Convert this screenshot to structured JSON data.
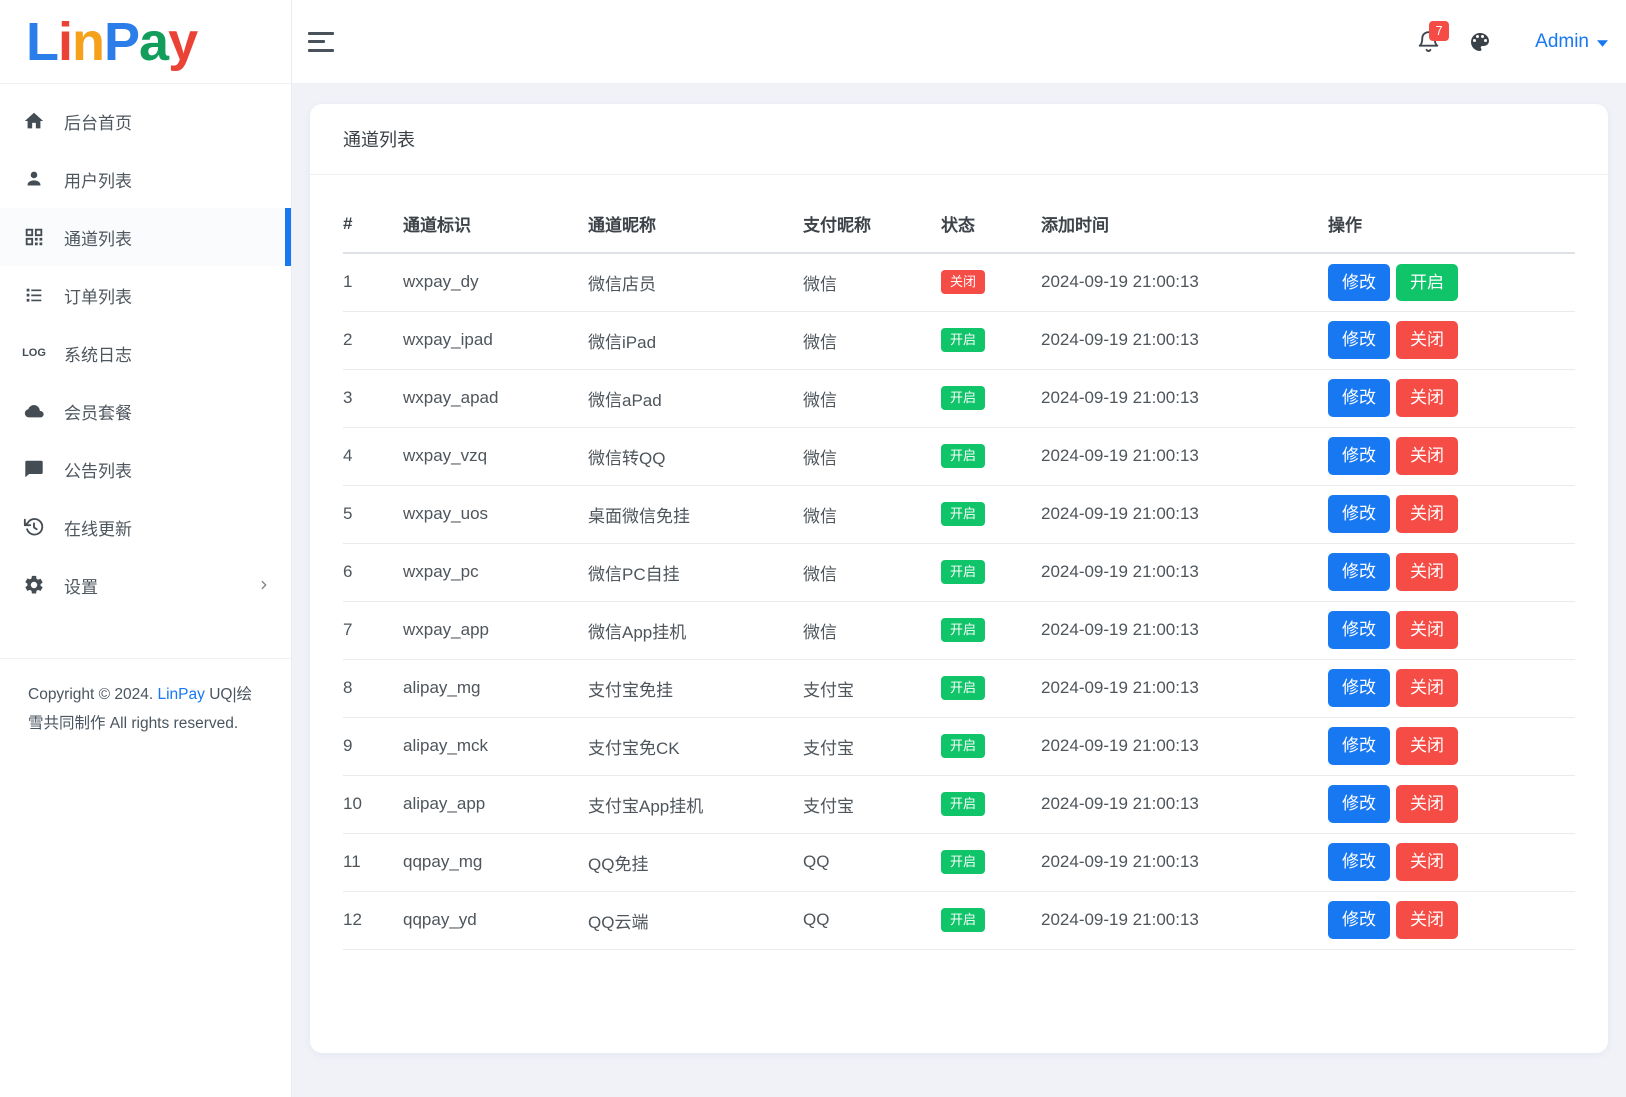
{
  "colors": {
    "primary": "#1778f2",
    "success": "#10c469",
    "danger": "#f64c46"
  },
  "brand": {
    "letters": [
      {
        "char": "L",
        "color": "#2b7de9"
      },
      {
        "char": "i",
        "color": "#ea4335"
      },
      {
        "char": "n",
        "color": "#f6a11c"
      },
      {
        "char": "P",
        "color": "#2b7de9"
      },
      {
        "char": "a",
        "color": "#129d5b"
      },
      {
        "char": "y",
        "color": "#ea4335"
      }
    ]
  },
  "topbar": {
    "notification_count": "7",
    "user_label": "Admin"
  },
  "sidebar": {
    "items": [
      {
        "id": "home",
        "label": "后台首页",
        "icon": "home-icon",
        "active": false,
        "chevron": false
      },
      {
        "id": "users",
        "label": "用户列表",
        "icon": "user-icon",
        "active": false,
        "chevron": false
      },
      {
        "id": "channels",
        "label": "通道列表",
        "icon": "qrcode-icon",
        "active": true,
        "chevron": false
      },
      {
        "id": "orders",
        "label": "订单列表",
        "icon": "list-icon",
        "active": false,
        "chevron": false
      },
      {
        "id": "logs",
        "label": "系统日志",
        "icon": "log-icon",
        "active": false,
        "chevron": false
      },
      {
        "id": "plans",
        "label": "会员套餐",
        "icon": "cloud-icon",
        "active": false,
        "chevron": false
      },
      {
        "id": "notices",
        "label": "公告列表",
        "icon": "message-icon",
        "active": false,
        "chevron": false
      },
      {
        "id": "update",
        "label": "在线更新",
        "icon": "update-icon",
        "active": false,
        "chevron": false
      },
      {
        "id": "settings",
        "label": "设置",
        "icon": "gear-icon",
        "active": false,
        "chevron": true
      }
    ]
  },
  "footer": {
    "copyright_prefix": "Copyright © 2024.",
    "brand": "LinPay",
    "rights": "UQ|绘雪共同制作 All rights reserved."
  },
  "page": {
    "card_title": "通道列表"
  },
  "table": {
    "headers": [
      "#",
      "通道标识",
      "通道昵称",
      "支付昵称",
      "状态",
      "添加时间",
      "操作"
    ],
    "rows": [
      {
        "index": "1",
        "code": "wxpay_dy",
        "nickname": "微信店员",
        "pay": "微信",
        "status": "关闭",
        "status_type": "off",
        "time": "2024-09-19 21:00:13",
        "actions": [
          {
            "label": "修改",
            "type": "primary",
            "name": "edit-button"
          },
          {
            "label": "开启",
            "type": "success",
            "name": "enable-button"
          }
        ]
      },
      {
        "index": "2",
        "code": "wxpay_ipad",
        "nickname": "微信iPad",
        "pay": "微信",
        "status": "开启",
        "status_type": "on",
        "time": "2024-09-19 21:00:13",
        "actions": [
          {
            "label": "修改",
            "type": "primary",
            "name": "edit-button"
          },
          {
            "label": "关闭",
            "type": "danger",
            "name": "close-button"
          }
        ]
      },
      {
        "index": "3",
        "code": "wxpay_apad",
        "nickname": "微信aPad",
        "pay": "微信",
        "status": "开启",
        "status_type": "on",
        "time": "2024-09-19 21:00:13",
        "actions": [
          {
            "label": "修改",
            "type": "primary",
            "name": "edit-button"
          },
          {
            "label": "关闭",
            "type": "danger",
            "name": "close-button"
          }
        ]
      },
      {
        "index": "4",
        "code": "wxpay_vzq",
        "nickname": "微信转QQ",
        "pay": "微信",
        "status": "开启",
        "status_type": "on",
        "time": "2024-09-19 21:00:13",
        "actions": [
          {
            "label": "修改",
            "type": "primary",
            "name": "edit-button"
          },
          {
            "label": "关闭",
            "type": "danger",
            "name": "close-button"
          }
        ]
      },
      {
        "index": "5",
        "code": "wxpay_uos",
        "nickname": "桌面微信免挂",
        "pay": "微信",
        "status": "开启",
        "status_type": "on",
        "time": "2024-09-19 21:00:13",
        "actions": [
          {
            "label": "修改",
            "type": "primary",
            "name": "edit-button"
          },
          {
            "label": "关闭",
            "type": "danger",
            "name": "close-button"
          }
        ]
      },
      {
        "index": "6",
        "code": "wxpay_pc",
        "nickname": "微信PC自挂",
        "pay": "微信",
        "status": "开启",
        "status_type": "on",
        "time": "2024-09-19 21:00:13",
        "actions": [
          {
            "label": "修改",
            "type": "primary",
            "name": "edit-button"
          },
          {
            "label": "关闭",
            "type": "danger",
            "name": "close-button"
          }
        ]
      },
      {
        "index": "7",
        "code": "wxpay_app",
        "nickname": "微信App挂机",
        "pay": "微信",
        "status": "开启",
        "status_type": "on",
        "time": "2024-09-19 21:00:13",
        "actions": [
          {
            "label": "修改",
            "type": "primary",
            "name": "edit-button"
          },
          {
            "label": "关闭",
            "type": "danger",
            "name": "close-button"
          }
        ]
      },
      {
        "index": "8",
        "code": "alipay_mg",
        "nickname": "支付宝免挂",
        "pay": "支付宝",
        "status": "开启",
        "status_type": "on",
        "time": "2024-09-19 21:00:13",
        "actions": [
          {
            "label": "修改",
            "type": "primary",
            "name": "edit-button"
          },
          {
            "label": "关闭",
            "type": "danger",
            "name": "close-button"
          }
        ]
      },
      {
        "index": "9",
        "code": "alipay_mck",
        "nickname": "支付宝免CK",
        "pay": "支付宝",
        "status": "开启",
        "status_type": "on",
        "time": "2024-09-19 21:00:13",
        "actions": [
          {
            "label": "修改",
            "type": "primary",
            "name": "edit-button"
          },
          {
            "label": "关闭",
            "type": "danger",
            "name": "close-button"
          }
        ]
      },
      {
        "index": "10",
        "code": "alipay_app",
        "nickname": "支付宝App挂机",
        "pay": "支付宝",
        "status": "开启",
        "status_type": "on",
        "time": "2024-09-19 21:00:13",
        "actions": [
          {
            "label": "修改",
            "type": "primary",
            "name": "edit-button"
          },
          {
            "label": "关闭",
            "type": "danger",
            "name": "close-button"
          }
        ]
      },
      {
        "index": "11",
        "code": "qqpay_mg",
        "nickname": "QQ免挂",
        "pay": "QQ",
        "status": "开启",
        "status_type": "on",
        "time": "2024-09-19 21:00:13",
        "actions": [
          {
            "label": "修改",
            "type": "primary",
            "name": "edit-button"
          },
          {
            "label": "关闭",
            "type": "danger",
            "name": "close-button"
          }
        ]
      },
      {
        "index": "12",
        "code": "qqpay_yd",
        "nickname": "QQ云端",
        "pay": "QQ",
        "status": "开启",
        "status_type": "on",
        "time": "2024-09-19 21:00:13",
        "actions": [
          {
            "label": "修改",
            "type": "primary",
            "name": "edit-button"
          },
          {
            "label": "关闭",
            "type": "danger",
            "name": "close-button"
          }
        ]
      }
    ]
  }
}
